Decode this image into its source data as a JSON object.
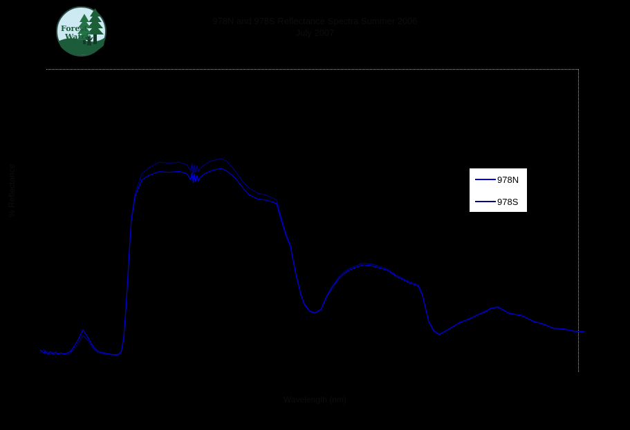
{
  "background": "#000000",
  "logo": {
    "name": "forest-watch-logo",
    "line1": "Forest",
    "line2": "Watch",
    "circle_fill": "#cdeaf2",
    "tree_color": "#1c5e38",
    "text_color": "#1a5c38"
  },
  "header": {
    "title_color": "#0d0d0d"
  },
  "legend": {
    "entries": [
      "978N",
      "978S"
    ]
  },
  "chart_data": {
    "type": "line",
    "title": "978N and 978S Reflectance Spectra Summer 2006",
    "subtitle": "July 2007",
    "xlabel": "Wavelength (nm)",
    "ylabel": "% Reflectance",
    "xlim": [
      350,
      2500
    ],
    "ylim": [
      0,
      100
    ],
    "grid": false,
    "legend_position": "right-center",
    "plot_border": {
      "style": "dotted",
      "color": "#aaaaaa",
      "sides": [
        "top",
        "right"
      ]
    },
    "series": [
      {
        "name": "978N",
        "color": "#0000dd",
        "points": [
          [
            350,
            7.5
          ],
          [
            365,
            6.4
          ],
          [
            370,
            7.2
          ],
          [
            380,
            6.1
          ],
          [
            390,
            6.9
          ],
          [
            400,
            6.2
          ],
          [
            410,
            6.7
          ],
          [
            420,
            6.1
          ],
          [
            430,
            6.5
          ],
          [
            445,
            6.2
          ],
          [
            460,
            6.6
          ],
          [
            470,
            7.0
          ],
          [
            480,
            8.2
          ],
          [
            500,
            10.8
          ],
          [
            519,
            14.1
          ],
          [
            540,
            11.5
          ],
          [
            560,
            8.6
          ],
          [
            580,
            7.0
          ],
          [
            607,
            6.4
          ],
          [
            630,
            6.1
          ],
          [
            656,
            5.9
          ],
          [
            670,
            6.8
          ],
          [
            680,
            11.5
          ],
          [
            690,
            22.5
          ],
          [
            700,
            36.5
          ],
          [
            710,
            50.0
          ],
          [
            725,
            58.0
          ],
          [
            752,
            63.5
          ],
          [
            780,
            65.0
          ],
          [
            820,
            66.2
          ],
          [
            860,
            66.0
          ],
          [
            900,
            66.3
          ],
          [
            930,
            65.5
          ],
          [
            945,
            63.5
          ],
          [
            950,
            66.0
          ],
          [
            955,
            62.5
          ],
          [
            960,
            65.5
          ],
          [
            965,
            62.8
          ],
          [
            970,
            65.0
          ],
          [
            975,
            63.2
          ],
          [
            985,
            64.5
          ],
          [
            1000,
            65.5
          ],
          [
            1020,
            66.3
          ],
          [
            1039,
            66.8
          ],
          [
            1066,
            67.3
          ],
          [
            1090,
            66.3
          ],
          [
            1121,
            64.1
          ],
          [
            1150,
            61.0
          ],
          [
            1175,
            58.6
          ],
          [
            1210,
            57.2
          ],
          [
            1243,
            56.8
          ],
          [
            1270,
            56.2
          ],
          [
            1284,
            55.6
          ],
          [
            1300,
            51.0
          ],
          [
            1320,
            45.5
          ],
          [
            1339,
            41.5
          ],
          [
            1360,
            32.5
          ],
          [
            1380,
            25.7
          ],
          [
            1394,
            22.4
          ],
          [
            1415,
            20.2
          ],
          [
            1435,
            19.6
          ],
          [
            1460,
            20.8
          ],
          [
            1480,
            24.7
          ],
          [
            1503,
            28.0
          ],
          [
            1530,
            31.0
          ],
          [
            1560,
            33.3
          ],
          [
            1598,
            34.7
          ],
          [
            1626,
            35.5
          ],
          [
            1660,
            35.2
          ],
          [
            1690,
            34.5
          ],
          [
            1722,
            33.7
          ],
          [
            1760,
            31.6
          ],
          [
            1803,
            29.8
          ],
          [
            1844,
            28.5
          ],
          [
            1860,
            25.6
          ],
          [
            1885,
            16.8
          ],
          [
            1905,
            13.8
          ],
          [
            1926,
            12.5
          ],
          [
            1950,
            13.7
          ],
          [
            1975,
            14.8
          ],
          [
            2008,
            16.6
          ],
          [
            2050,
            17.8
          ],
          [
            2080,
            19.2
          ],
          [
            2104,
            19.8
          ],
          [
            2130,
            21.2
          ],
          [
            2158,
            21.5
          ],
          [
            2180,
            20.7
          ],
          [
            2200,
            19.6
          ],
          [
            2254,
            18.8
          ],
          [
            2300,
            16.8
          ],
          [
            2340,
            16.0
          ],
          [
            2377,
            14.6
          ],
          [
            2420,
            14.4
          ],
          [
            2460,
            13.6
          ],
          [
            2500,
            13.6
          ]
        ]
      },
      {
        "name": "978S",
        "color": "#000080",
        "points": [
          [
            350,
            6.8
          ],
          [
            365,
            7.5
          ],
          [
            370,
            6.2
          ],
          [
            380,
            7.0
          ],
          [
            390,
            6.0
          ],
          [
            400,
            6.6
          ],
          [
            410,
            5.9
          ],
          [
            420,
            6.4
          ],
          [
            430,
            6.0
          ],
          [
            445,
            6.3
          ],
          [
            460,
            6.1
          ],
          [
            470,
            6.5
          ],
          [
            480,
            7.5
          ],
          [
            500,
            9.5
          ],
          [
            519,
            12.3
          ],
          [
            540,
            10.5
          ],
          [
            560,
            8.0
          ],
          [
            580,
            6.6
          ],
          [
            607,
            6.2
          ],
          [
            630,
            5.9
          ],
          [
            656,
            5.7
          ],
          [
            670,
            6.5
          ],
          [
            680,
            11.0
          ],
          [
            690,
            22.0
          ],
          [
            700,
            36.0
          ],
          [
            710,
            50.5
          ],
          [
            725,
            59.0
          ],
          [
            752,
            65.5
          ],
          [
            780,
            67.5
          ],
          [
            820,
            69.3
          ],
          [
            860,
            69.0
          ],
          [
            900,
            69.3
          ],
          [
            930,
            68.5
          ],
          [
            945,
            66.5
          ],
          [
            950,
            69.0
          ],
          [
            955,
            65.5
          ],
          [
            960,
            68.5
          ],
          [
            965,
            66.0
          ],
          [
            970,
            68.2
          ],
          [
            975,
            66.3
          ],
          [
            985,
            67.5
          ],
          [
            1000,
            68.5
          ],
          [
            1020,
            69.5
          ],
          [
            1039,
            70.0
          ],
          [
            1066,
            70.5
          ],
          [
            1090,
            69.5
          ],
          [
            1121,
            66.4
          ],
          [
            1150,
            63.0
          ],
          [
            1175,
            60.9
          ],
          [
            1210,
            59.1
          ],
          [
            1243,
            58.4
          ],
          [
            1270,
            57.5
          ],
          [
            1284,
            56.8
          ],
          [
            1300,
            52.0
          ],
          [
            1320,
            46.0
          ],
          [
            1339,
            42.0
          ],
          [
            1360,
            33.0
          ],
          [
            1380,
            26.0
          ],
          [
            1394,
            22.7
          ],
          [
            1415,
            20.5
          ],
          [
            1435,
            19.8
          ],
          [
            1460,
            21.0
          ],
          [
            1480,
            25.0
          ],
          [
            1503,
            28.4
          ],
          [
            1530,
            31.5
          ],
          [
            1560,
            33.8
          ],
          [
            1598,
            35.2
          ],
          [
            1626,
            36.1
          ],
          [
            1660,
            35.8
          ],
          [
            1690,
            35.0
          ],
          [
            1722,
            34.1
          ],
          [
            1760,
            32.0
          ],
          [
            1803,
            30.2
          ],
          [
            1844,
            28.9
          ],
          [
            1860,
            26.0
          ],
          [
            1885,
            17.0
          ],
          [
            1905,
            14.0
          ],
          [
            1926,
            12.7
          ],
          [
            1950,
            13.5
          ],
          [
            1975,
            15.0
          ],
          [
            2008,
            16.4
          ],
          [
            2050,
            18.0
          ],
          [
            2080,
            19.0
          ],
          [
            2104,
            20.2
          ],
          [
            2130,
            21.0
          ],
          [
            2158,
            21.8
          ],
          [
            2180,
            20.5
          ],
          [
            2200,
            19.8
          ],
          [
            2254,
            18.6
          ],
          [
            2300,
            17.0
          ],
          [
            2340,
            15.8
          ],
          [
            2377,
            14.8
          ],
          [
            2420,
            14.2
          ],
          [
            2460,
            13.8
          ],
          [
            2500,
            13.4
          ]
        ]
      }
    ]
  }
}
